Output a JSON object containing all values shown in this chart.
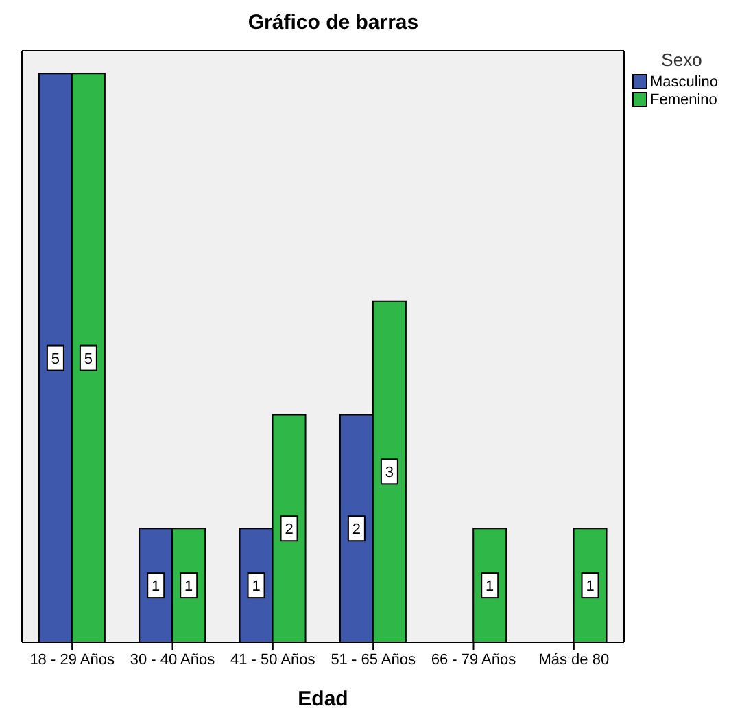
{
  "chart_data": {
    "type": "bar",
    "title": "Gráfico de barras",
    "xlabel": "Edad",
    "legend_title": "Sexo",
    "categories": [
      "18 - 29 Años",
      "30 - 40 Años",
      "41 - 50 Años",
      "51 - 65 Años",
      "66 - 79 Años",
      "Más de 80"
    ],
    "series": [
      {
        "name": "Masculino",
        "color": "#3e58ac",
        "values": [
          5,
          1,
          1,
          2,
          null,
          null
        ]
      },
      {
        "name": "Femenino",
        "color": "#2fb847",
        "values": [
          5,
          1,
          2,
          3,
          1,
          1
        ]
      }
    ],
    "ylim": [
      0,
      5.2
    ],
    "tick_labels": "x",
    "data_labels": true,
    "legend": "top right"
  }
}
